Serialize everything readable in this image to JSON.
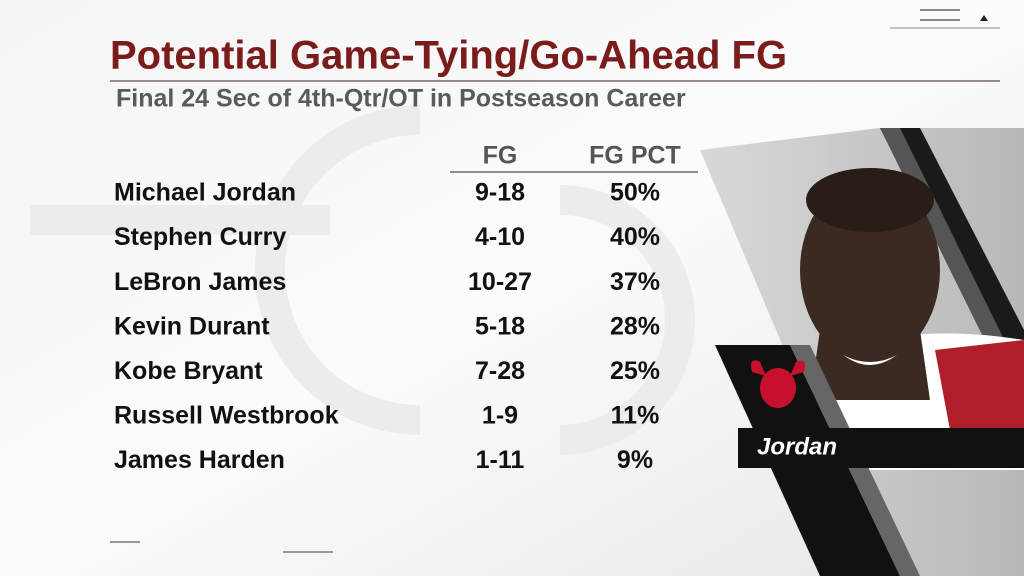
{
  "title": "Potential Game-Tying/Go-Ahead FG",
  "subtitle": "Final 24 Sec of 4th-Qtr/OT in Postseason Career",
  "table": {
    "header": [
      "FG",
      "FG PCT"
    ],
    "rows": [
      [
        "Michael Jordan",
        "9-18",
        "50%"
      ],
      [
        "Stephen Curry",
        "4-10",
        "40%"
      ],
      [
        "LeBron James",
        "10-27",
        "37%"
      ],
      [
        "Kevin Durant",
        "5-18",
        "28%"
      ],
      [
        "Kobe Bryant",
        "7-28",
        "25%"
      ],
      [
        "Russell Westbrook",
        "1-9",
        "11%"
      ],
      [
        "James Harden",
        "1-11",
        "9%"
      ]
    ]
  },
  "caption": "Jordan"
}
